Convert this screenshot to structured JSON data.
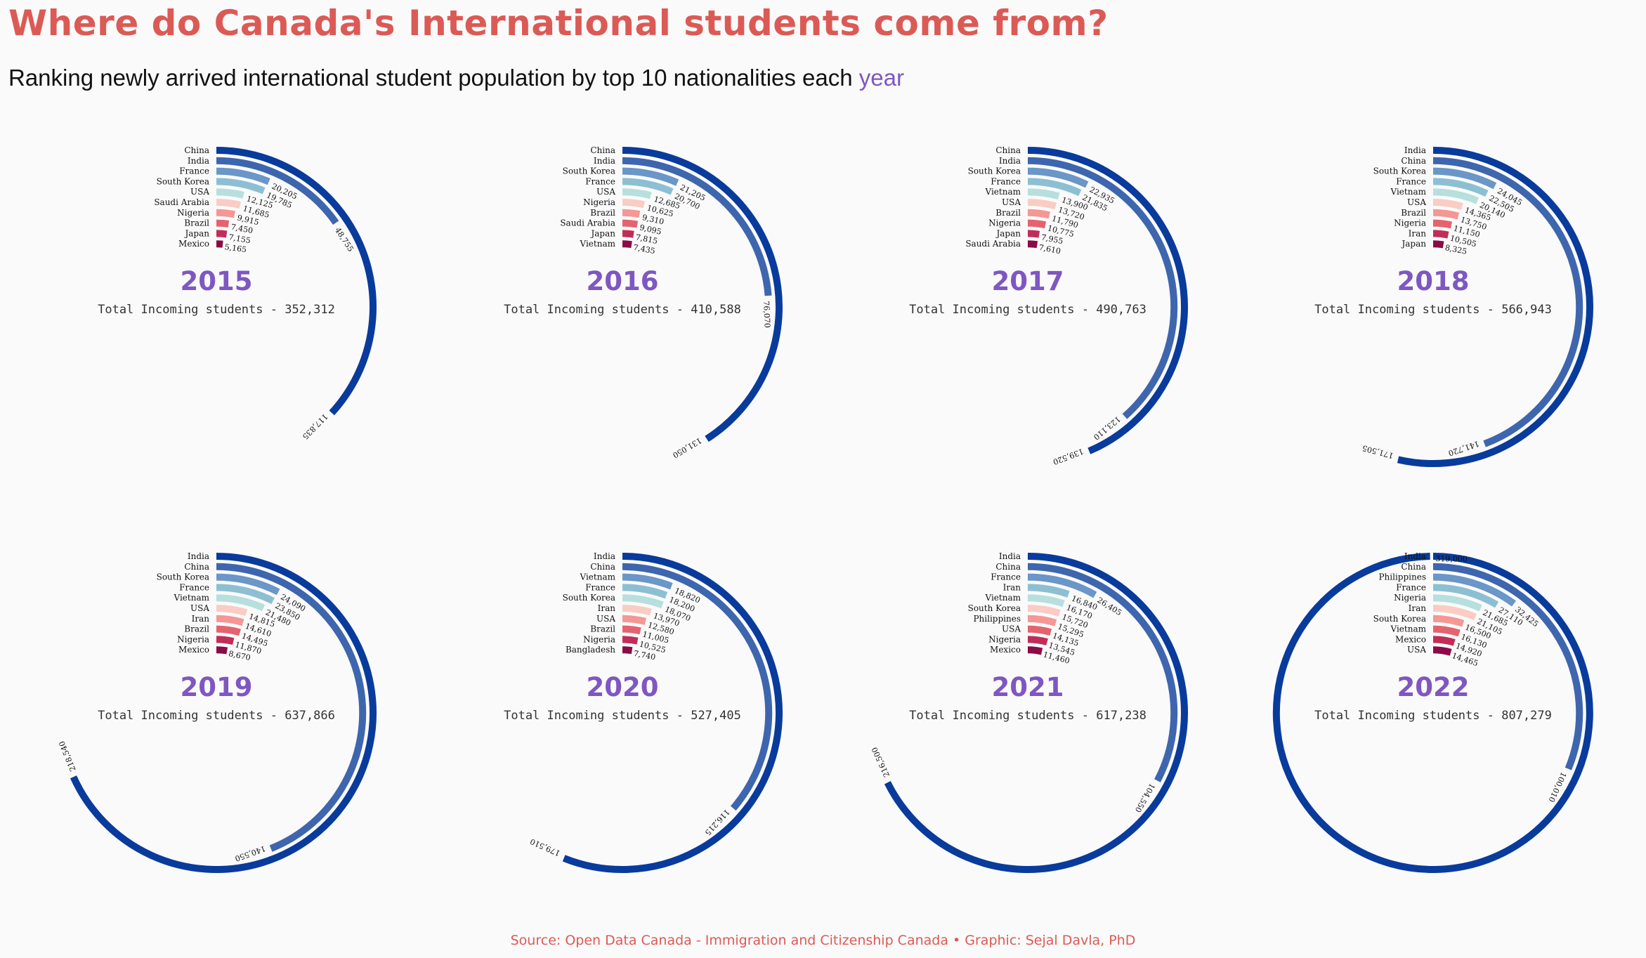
{
  "header": {
    "title": "Where do Canada's International students come from?",
    "subtitle_main": "Ranking newly arrived international student population by top 10 nationalities each",
    "subtitle_accent": "year"
  },
  "footer": {
    "source": "Source: Open Data Canada - Immigration and Citizenship Canada • Graphic: Sejal Davla, PhD"
  },
  "colors": {
    "accent_title": "#dc5a55",
    "accent_year": "#7e57c2",
    "rank_palette": [
      "#083b9c",
      "#3e66ae",
      "#6a96c8",
      "#8dbfd3",
      "#b7dfdd",
      "#f9cdc4",
      "#f49795",
      "#e4636f",
      "#c22d58",
      "#8c0a45"
    ]
  },
  "chart_data": [
    {
      "type": "radial-bar",
      "year": "2015",
      "total_label": "Total Incoming students - 352,312",
      "categories": [
        "China",
        "India",
        "France",
        "South Korea",
        "USA",
        "Saudi Arabia",
        "Nigeria",
        "Brazil",
        "Japan",
        "Mexico"
      ],
      "value_labels": [
        "117,835",
        "48,755",
        "20,205",
        "19,785",
        "12,125",
        "11,685",
        "9,915",
        "7,450",
        "7,155",
        "5,165"
      ],
      "values": [
        117835,
        48755,
        20205,
        19785,
        12125,
        11685,
        9915,
        7450,
        7155,
        5165
      ]
    },
    {
      "type": "radial-bar",
      "year": "2016",
      "total_label": "Total Incoming students - 410,588",
      "categories": [
        "China",
        "India",
        "South Korea",
        "France",
        "USA",
        "Nigeria",
        "Brazil",
        "Saudi Arabia",
        "Japan",
        "Vietnam"
      ],
      "value_labels": [
        "131,050",
        "76,070",
        "21,205",
        "20,700",
        "12,685",
        "10,625",
        "9,310",
        "9,095",
        "7,815",
        "7,435"
      ],
      "values": [
        131050,
        76070,
        21205,
        20700,
        12685,
        10625,
        9310,
        9095,
        7815,
        7435
      ]
    },
    {
      "type": "radial-bar",
      "year": "2017",
      "total_label": "Total Incoming students - 490,763",
      "categories": [
        "China",
        "India",
        "South Korea",
        "France",
        "Vietnam",
        "USA",
        "Brazil",
        "Nigeria",
        "Japan",
        "Saudi Arabia"
      ],
      "value_labels": [
        "139,520",
        "123,110",
        "22,935",
        "21,835",
        "13,900",
        "13,720",
        "11,790",
        "10,775",
        "7,955",
        "7,610"
      ],
      "values": [
        139520,
        123110,
        22935,
        21835,
        13900,
        13720,
        11790,
        10775,
        7955,
        7610
      ]
    },
    {
      "type": "radial-bar",
      "year": "2018",
      "total_label": "Total Incoming students - 566,943",
      "categories": [
        "India",
        "China",
        "South Korea",
        "France",
        "Vietnam",
        "USA",
        "Brazil",
        "Nigeria",
        "Iran",
        "Japan"
      ],
      "value_labels": [
        "171,505",
        "141,720",
        "24,045",
        "22,505",
        "20,140",
        "14,365",
        "13,750",
        "11,150",
        "10,505",
        "8,325"
      ],
      "values": [
        171505,
        141720,
        24045,
        22505,
        20140,
        14365,
        13750,
        11150,
        10505,
        8325
      ]
    },
    {
      "type": "radial-bar",
      "year": "2019",
      "total_label": "Total Incoming students - 637,866",
      "categories": [
        "India",
        "China",
        "South Korea",
        "France",
        "Vietnam",
        "USA",
        "Iran",
        "Brazil",
        "Nigeria",
        "Mexico"
      ],
      "value_labels": [
        "218,540",
        "140,550",
        "24,090",
        "23,850",
        "21,480",
        "14,815",
        "14,610",
        "14,495",
        "11,870",
        "8,670"
      ],
      "values": [
        218540,
        140550,
        24090,
        23850,
        21480,
        14815,
        14610,
        14495,
        11870,
        8670
      ]
    },
    {
      "type": "radial-bar",
      "year": "2020",
      "total_label": "Total Incoming students - 527,405",
      "categories": [
        "India",
        "China",
        "Vietnam",
        "France",
        "South Korea",
        "Iran",
        "USA",
        "Brazil",
        "Nigeria",
        "Bangladesh"
      ],
      "value_labels": [
        "179,510",
        "116,215",
        "18,820",
        "18,200",
        "18,070",
        "13,970",
        "12,580",
        "11,005",
        "10,525",
        "7,740"
      ],
      "values": [
        179510,
        116215,
        18820,
        18200,
        18070,
        13970,
        12580,
        11005,
        10525,
        7740
      ]
    },
    {
      "type": "radial-bar",
      "year": "2021",
      "total_label": "Total Incoming students - 617,238",
      "categories": [
        "India",
        "China",
        "France",
        "Iran",
        "Vietnam",
        "South Korea",
        "Philippines",
        "USA",
        "Nigeria",
        "Mexico"
      ],
      "value_labels": [
        "216,500",
        "104,550",
        "26,405",
        "16,840",
        "16,170",
        "15,720",
        "15,295",
        "14,135",
        "13,545",
        "11,460"
      ],
      "values": [
        216500,
        104550,
        26405,
        16840,
        16170,
        15720,
        15295,
        14135,
        13545,
        11460
      ]
    },
    {
      "type": "radial-bar",
      "year": "2022",
      "total_label": "Total Incoming students - 807,279",
      "categories": [
        "India",
        "China",
        "Philippines",
        "France",
        "Nigeria",
        "Iran",
        "South Korea",
        "Vietnam",
        "Mexico",
        "USA"
      ],
      "value_labels": [
        "319,000",
        "100,010",
        "32,425",
        "27,110",
        "21,685",
        "21,105",
        "16,500",
        "16,130",
        "14,920",
        "14,465"
      ],
      "values": [
        319000,
        100010,
        32425,
        27110,
        21685,
        21105,
        16500,
        16130,
        14920,
        14465
      ]
    }
  ]
}
